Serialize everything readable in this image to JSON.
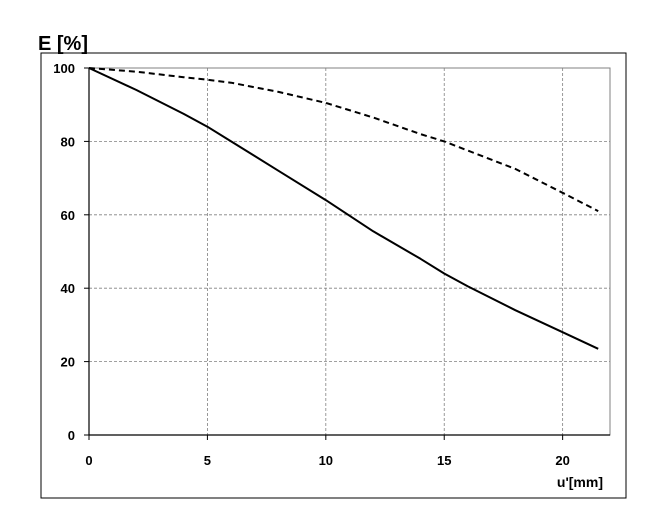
{
  "chart_data": {
    "type": "line",
    "title": "",
    "ylabel": "E [%]",
    "xlabel": "u'[mm]",
    "xlim": [
      0,
      22
    ],
    "ylim": [
      0,
      100
    ],
    "xticks": [
      0,
      5,
      10,
      15,
      20
    ],
    "yticks": [
      0,
      20,
      40,
      60,
      80,
      100
    ],
    "grid": true,
    "series": [
      {
        "style": "solid",
        "x": [
          0,
          2,
          4,
          5,
          6,
          8,
          10,
          12,
          14,
          15,
          16,
          18,
          20,
          21.5
        ],
        "y": [
          100,
          94,
          87.5,
          84,
          80,
          72,
          64,
          55.5,
          48,
          44,
          40.5,
          34,
          28,
          23.5
        ]
      },
      {
        "style": "dashed",
        "x": [
          0,
          2,
          4,
          5,
          6,
          8,
          10,
          12,
          14,
          15,
          16,
          18,
          20,
          21.5
        ],
        "y": [
          100,
          99,
          97.5,
          96.8,
          96,
          93.5,
          90.5,
          86.5,
          82,
          80,
          77.5,
          72.5,
          66,
          61
        ]
      }
    ]
  }
}
